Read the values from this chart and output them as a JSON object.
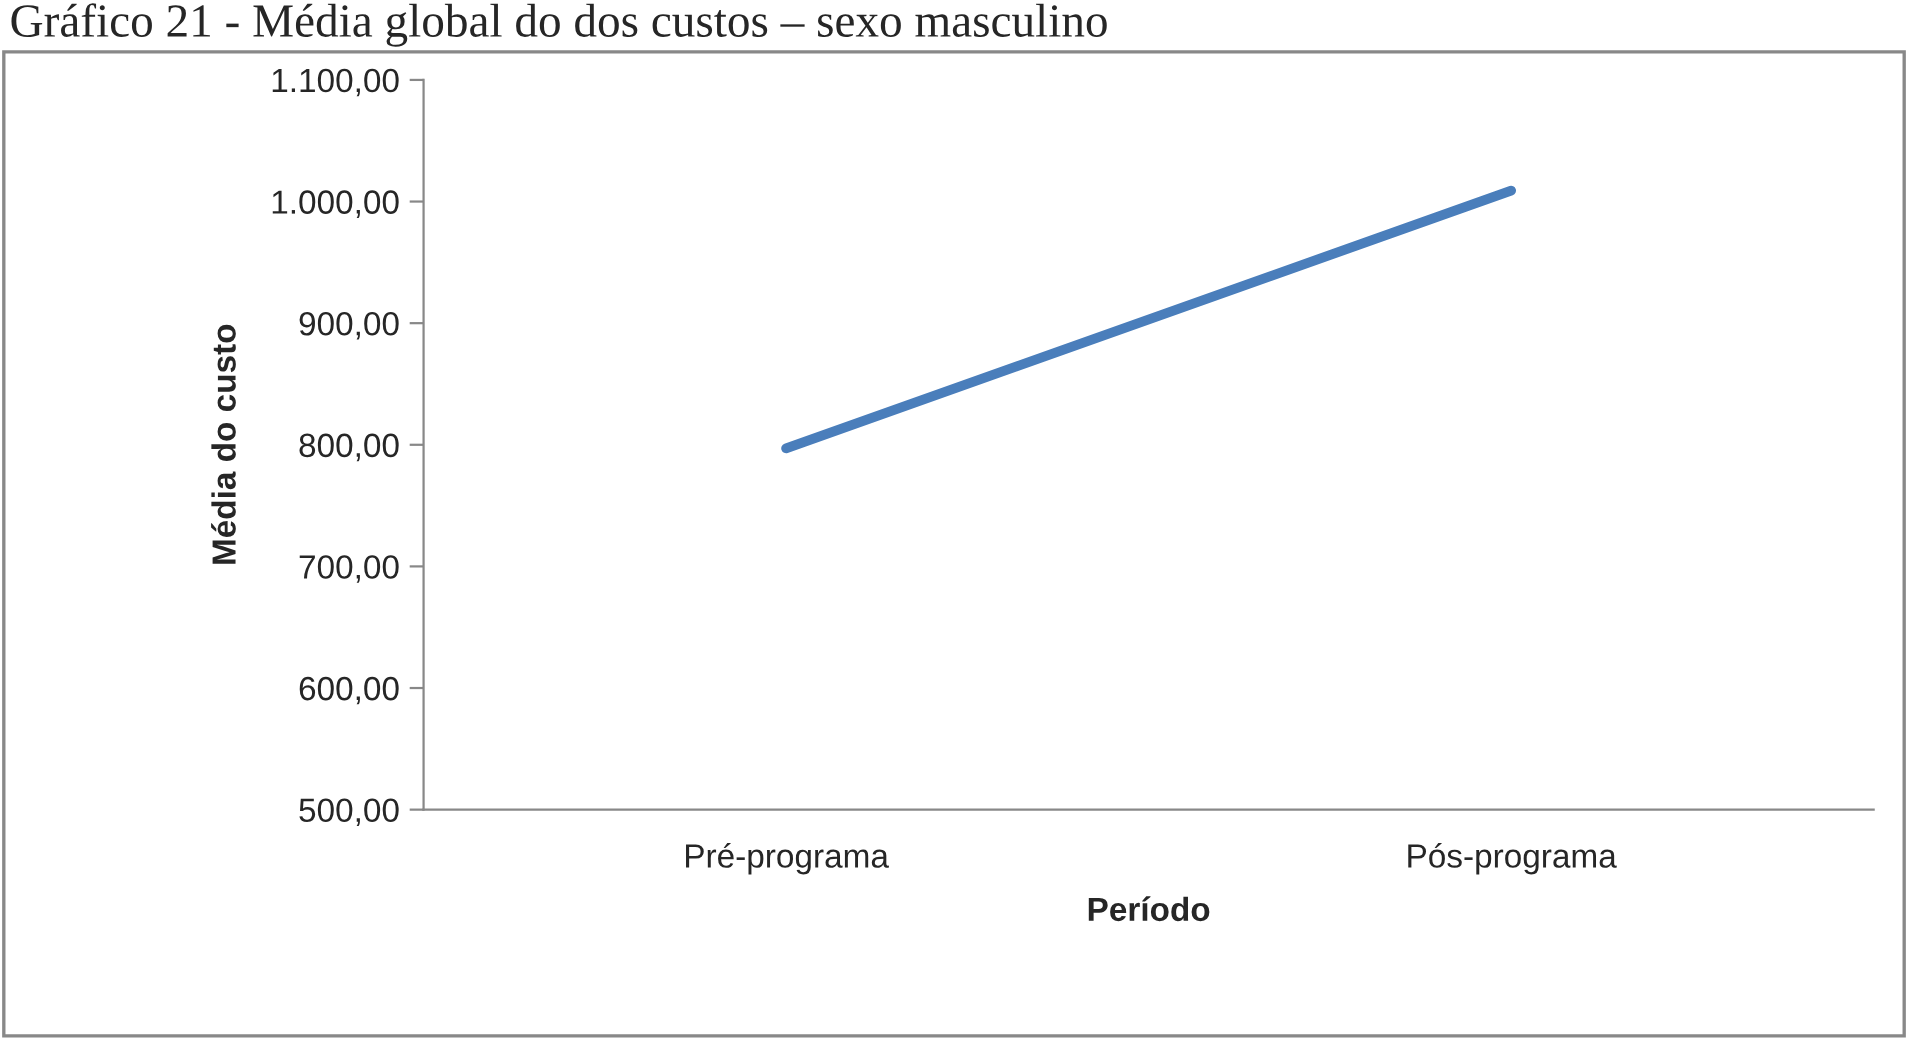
{
  "chart_data": {
    "type": "line",
    "title": "Gráfico 21 - Média global do dos custos – sexo masculino",
    "xlabel": "Período",
    "ylabel": "Média do custo",
    "categories": [
      "Pré-programa",
      "Pós-programa"
    ],
    "series": [
      {
        "color": "#4a7ebb",
        "values": [
          797,
          1009
        ]
      }
    ],
    "ylim": [
      500,
      1100
    ],
    "yticks": [
      {
        "value": 500,
        "label": "500,00"
      },
      {
        "value": 600,
        "label": "600,00"
      },
      {
        "value": 700,
        "label": "700,00"
      },
      {
        "value": 800,
        "label": "800,00"
      },
      {
        "value": 900,
        "label": "900,00"
      },
      {
        "value": 1000,
        "label": "1.000,00"
      },
      {
        "value": 1100,
        "label": "1.100,00"
      }
    ],
    "grid": false,
    "legend": false,
    "marker": "none",
    "line_style": "solid"
  }
}
